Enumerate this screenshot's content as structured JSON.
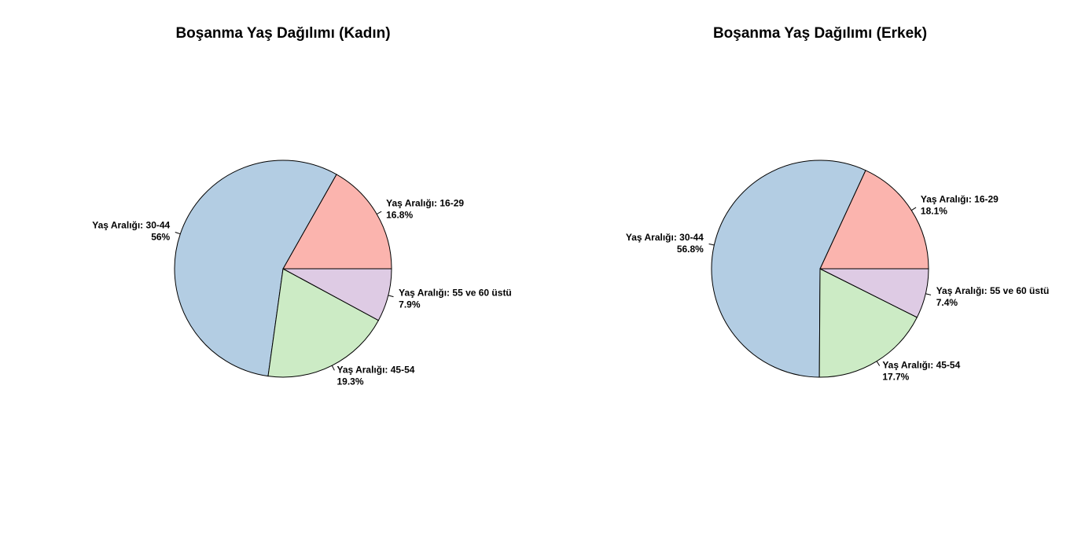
{
  "chart_data": [
    {
      "type": "pie",
      "title": "Boşanma Yaş Dağılımı (Kadın)",
      "slices": [
        {
          "label": "Yaş Aralığı: 16-29",
          "value": 16.8,
          "percent_text": "16.8%",
          "color": "#FBB4AE"
        },
        {
          "label": "Yaş Aralığı: 30-44",
          "value": 56,
          "percent_text": "56%",
          "color": "#B3CDE3"
        },
        {
          "label": "Yaş Aralığı: 45-54",
          "value": 19.3,
          "percent_text": "19.3%",
          "color": "#CCEBC5"
        },
        {
          "label": "Yaş Aralığı: 55 ve 60 üstü",
          "value": 7.9,
          "percent_text": "7.9%",
          "color": "#DECBE4"
        }
      ],
      "start_angle_deg": 0,
      "direction": "counterclockwise"
    },
    {
      "type": "pie",
      "title": "Boşanma Yaş Dağılımı (Erkek)",
      "slices": [
        {
          "label": "Yaş Aralığı: 16-29",
          "value": 18.1,
          "percent_text": "18.1%",
          "color": "#FBB4AE"
        },
        {
          "label": "Yaş Aralığı: 30-44",
          "value": 56.8,
          "percent_text": "56.8%",
          "color": "#B3CDE3"
        },
        {
          "label": "Yaş Aralığı: 45-54",
          "value": 17.7,
          "percent_text": "17.7%",
          "color": "#CCEBC5"
        },
        {
          "label": "Yaş Aralığı: 55 ve 60 üstü",
          "value": 7.4,
          "percent_text": "7.4%",
          "color": "#DECBE4"
        }
      ],
      "start_angle_deg": 0,
      "direction": "counterclockwise"
    }
  ]
}
